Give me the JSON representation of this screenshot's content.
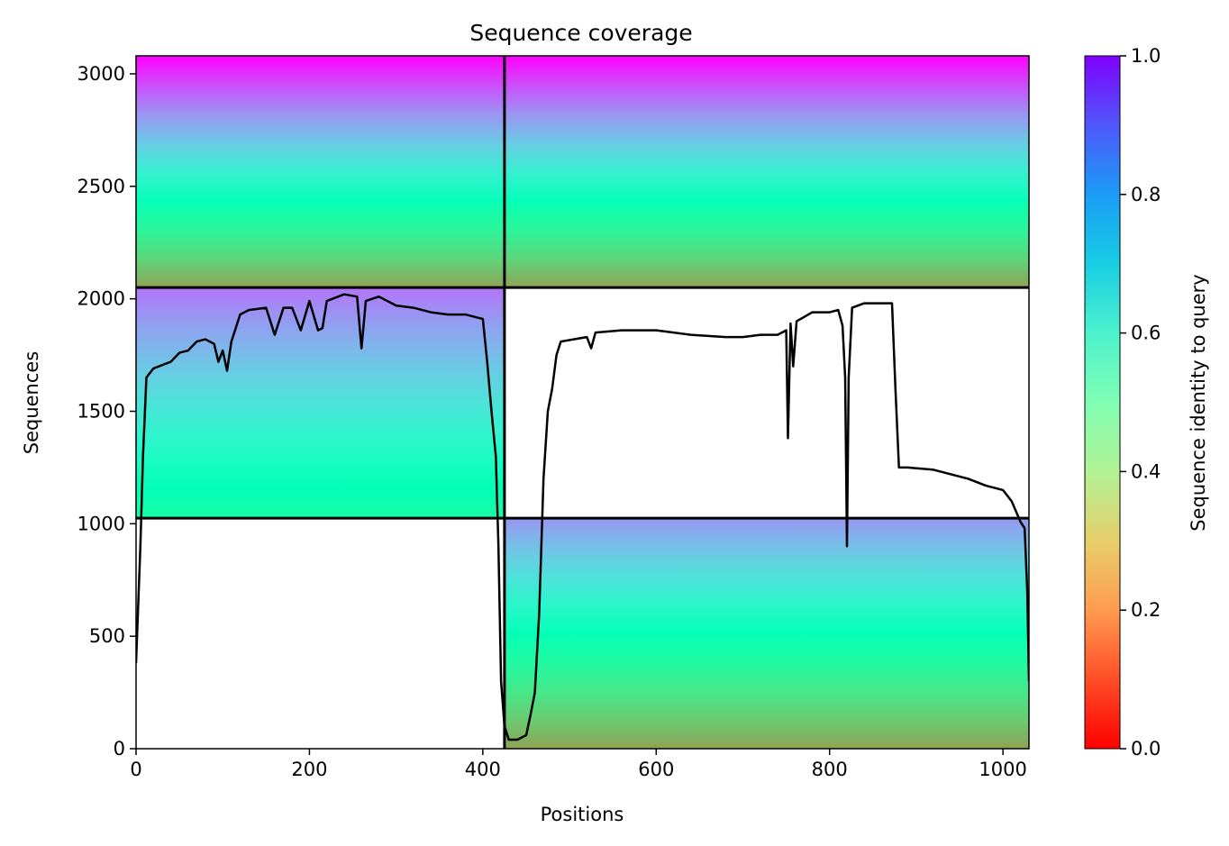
{
  "chart_data": {
    "type": "heatmap",
    "title": "Sequence coverage",
    "xlabel": "Positions",
    "ylabel": "Sequences",
    "xlim": [
      0,
      1030
    ],
    "ylim": [
      0,
      3080
    ],
    "xticks": [
      0,
      200,
      400,
      600,
      800,
      1000
    ],
    "yticks": [
      0,
      500,
      1000,
      1500,
      2000,
      2500,
      3000
    ],
    "colorbar": {
      "label": "Sequence identity to query",
      "colormap": "rainbow_r",
      "range": [
        0.0,
        1.0
      ],
      "ticks": [
        "0.0",
        "0.2",
        "0.4",
        "0.6",
        "0.8",
        "1.0"
      ]
    },
    "segment_boundaries": {
      "positions": [
        425
      ],
      "sequences": [
        1025,
        2050
      ]
    },
    "blocks": [
      {
        "name": "top-left",
        "x": [
          0,
          425
        ],
        "y": [
          2050,
          3080
        ],
        "identity_top": 1.0,
        "identity_bottom": 0.22
      },
      {
        "name": "top-right",
        "x": [
          425,
          1030
        ],
        "y": [
          2050,
          3080
        ],
        "identity_top": 1.0,
        "identity_bottom": 0.22
      },
      {
        "name": "middle-left",
        "x": [
          0,
          425
        ],
        "y": [
          1025,
          2050
        ],
        "identity_top": 0.85,
        "identity_bottom": 0.45
      },
      {
        "name": "bottom-right",
        "x": [
          425,
          1030
        ],
        "y": [
          0,
          1025
        ],
        "identity_top": 0.8,
        "identity_bottom": 0.22
      }
    ],
    "coverage_line": {
      "name": "coverage",
      "points": [
        [
          0,
          380
        ],
        [
          5,
          900
        ],
        [
          8,
          1300
        ],
        [
          12,
          1650
        ],
        [
          20,
          1690
        ],
        [
          40,
          1720
        ],
        [
          50,
          1760
        ],
        [
          60,
          1770
        ],
        [
          70,
          1810
        ],
        [
          80,
          1820
        ],
        [
          90,
          1800
        ],
        [
          95,
          1720
        ],
        [
          100,
          1770
        ],
        [
          105,
          1680
        ],
        [
          110,
          1810
        ],
        [
          120,
          1930
        ],
        [
          130,
          1950
        ],
        [
          150,
          1960
        ],
        [
          160,
          1840
        ],
        [
          170,
          1960
        ],
        [
          180,
          1960
        ],
        [
          190,
          1860
        ],
        [
          200,
          1990
        ],
        [
          210,
          1860
        ],
        [
          215,
          1870
        ],
        [
          220,
          1990
        ],
        [
          240,
          2020
        ],
        [
          255,
          2010
        ],
        [
          260,
          1780
        ],
        [
          265,
          1990
        ],
        [
          280,
          2010
        ],
        [
          300,
          1970
        ],
        [
          320,
          1960
        ],
        [
          340,
          1940
        ],
        [
          360,
          1930
        ],
        [
          380,
          1930
        ],
        [
          400,
          1910
        ],
        [
          405,
          1720
        ],
        [
          410,
          1500
        ],
        [
          415,
          1300
        ],
        [
          418,
          900
        ],
        [
          421,
          300
        ],
        [
          425,
          100
        ],
        [
          430,
          40
        ],
        [
          440,
          40
        ],
        [
          450,
          60
        ],
        [
          455,
          150
        ],
        [
          460,
          250
        ],
        [
          465,
          600
        ],
        [
          470,
          1200
        ],
        [
          475,
          1500
        ],
        [
          480,
          1600
        ],
        [
          485,
          1750
        ],
        [
          490,
          1810
        ],
        [
          520,
          1830
        ],
        [
          525,
          1780
        ],
        [
          530,
          1850
        ],
        [
          560,
          1860
        ],
        [
          600,
          1860
        ],
        [
          640,
          1840
        ],
        [
          680,
          1830
        ],
        [
          700,
          1830
        ],
        [
          720,
          1840
        ],
        [
          740,
          1840
        ],
        [
          750,
          1860
        ],
        [
          752,
          1380
        ],
        [
          755,
          1890
        ],
        [
          758,
          1700
        ],
        [
          762,
          1900
        ],
        [
          780,
          1940
        ],
        [
          800,
          1940
        ],
        [
          810,
          1950
        ],
        [
          815,
          1880
        ],
        [
          818,
          1650
        ],
        [
          820,
          900
        ],
        [
          822,
          1650
        ],
        [
          826,
          1960
        ],
        [
          840,
          1980
        ],
        [
          860,
          1980
        ],
        [
          872,
          1980
        ],
        [
          876,
          1600
        ],
        [
          880,
          1250
        ],
        [
          890,
          1250
        ],
        [
          920,
          1240
        ],
        [
          940,
          1220
        ],
        [
          960,
          1200
        ],
        [
          980,
          1170
        ],
        [
          1000,
          1150
        ],
        [
          1010,
          1100
        ],
        [
          1020,
          1010
        ],
        [
          1025,
          980
        ],
        [
          1028,
          700
        ],
        [
          1030,
          300
        ]
      ]
    }
  }
}
